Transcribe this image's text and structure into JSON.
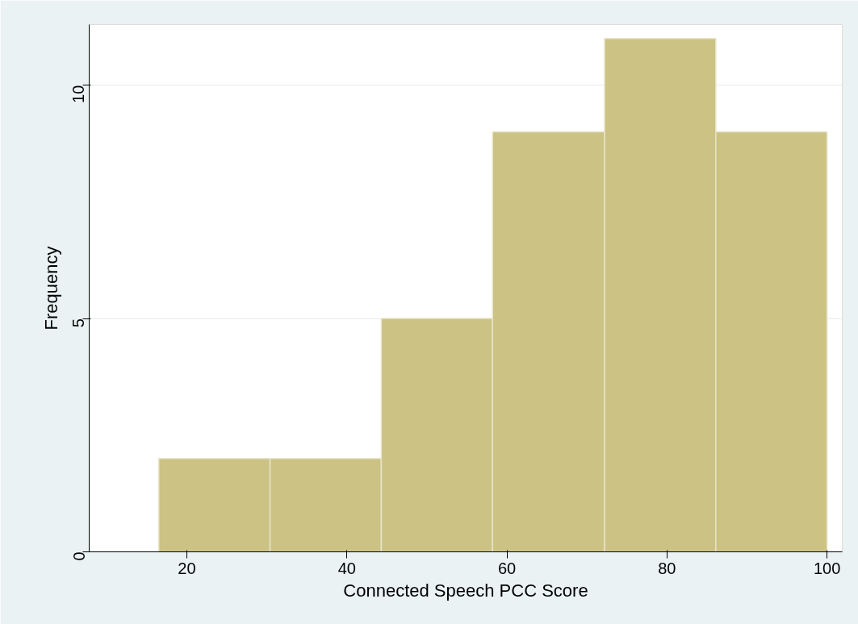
{
  "chart_data": {
    "type": "histogram",
    "xlabel": "Connected Speech PCC Score",
    "ylabel": "Frequency",
    "bins": [
      16.5,
      30.4,
      44.3,
      58.2,
      72.2,
      86.1,
      100
    ],
    "values": [
      2,
      2,
      5,
      9,
      11,
      9
    ],
    "color": "#cbc284",
    "xlim": [
      7.8,
      101.9
    ],
    "xticks": [
      20,
      40,
      60,
      80,
      100
    ],
    "ylim": [
      0,
      11.3
    ],
    "yticks": [
      0,
      5,
      10
    ],
    "grid": "y"
  }
}
